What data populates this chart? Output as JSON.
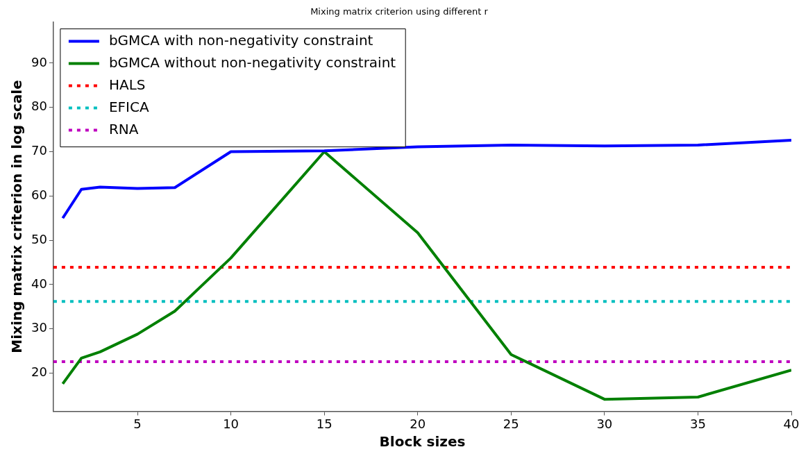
{
  "chart_data": {
    "type": "line",
    "title": "Mixing matrix criterion using different r",
    "xlabel": "Block sizes",
    "ylabel": "Mixing matrix criterion in log scale",
    "x": [
      1,
      2,
      3,
      5,
      7,
      10,
      15,
      20,
      25,
      30,
      35,
      40
    ],
    "series": [
      {
        "name": "bGMCA with non-negativity constraint",
        "color": "#0000ff",
        "values": [
          55,
          61.5,
          62,
          61.7,
          61.9,
          70,
          70.2,
          71.1,
          71.5,
          71.3,
          71.5,
          72.6
        ]
      },
      {
        "name": "bGMCA without non-negativity constraint",
        "color": "#008000",
        "values": [
          17.6,
          23.4,
          24.8,
          28.8,
          34,
          46,
          70,
          51.7,
          24.2,
          14.1,
          14.6,
          20.7
        ]
      }
    ],
    "ref_lines": [
      {
        "axis": "y",
        "value": 43.9,
        "label": "HALS",
        "color": "#ff0000",
        "line_style": "dotted"
      },
      {
        "axis": "y",
        "value": 36.2,
        "label": "EFICA",
        "color": "#00bfbf",
        "line_style": "dotted"
      },
      {
        "axis": "y",
        "value": 22.6,
        "label": "RNA",
        "color": "#bf00bf",
        "line_style": "dotted"
      }
    ],
    "xlim": [
      0.5,
      40
    ],
    "xticks": [
      5,
      10,
      15,
      20,
      25,
      30,
      35,
      40
    ],
    "ylim": [
      11.4,
      99.3
    ],
    "yticks": [
      20,
      30,
      40,
      50,
      60,
      70,
      80,
      90
    ],
    "grid": false,
    "legend": "top left",
    "marker": "none",
    "line_style": "solid"
  }
}
